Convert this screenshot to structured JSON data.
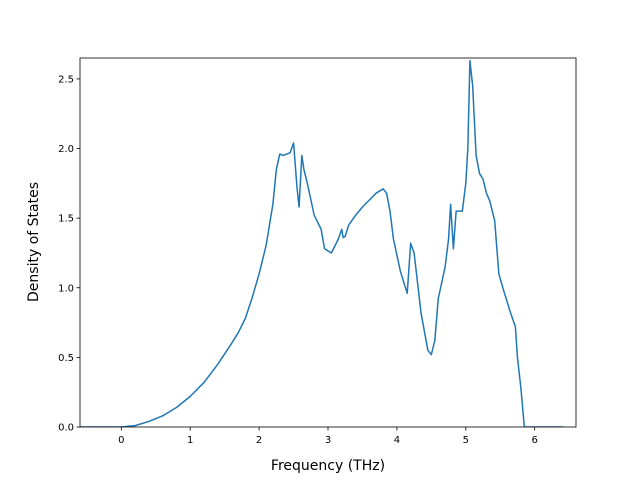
{
  "chart_data": {
    "type": "line",
    "title": "",
    "xlabel": "Frequency (THz)",
    "ylabel": "Density of States",
    "xlim": [
      -0.6,
      6.6
    ],
    "ylim": [
      0,
      2.65
    ],
    "xticks": [
      0,
      1,
      2,
      3,
      4,
      5,
      6
    ],
    "yticks": [
      0.0,
      0.5,
      1.0,
      1.5,
      2.0,
      2.5
    ],
    "xtick_labels": [
      "0",
      "1",
      "2",
      "3",
      "4",
      "5",
      "6"
    ],
    "ytick_labels": [
      "0.0",
      "0.5",
      "1.0",
      "1.5",
      "2.0",
      "2.5"
    ],
    "grid": false,
    "legend": "none",
    "line_color": "#1f77b4",
    "series": [
      {
        "x": [
          -0.6,
          -0.3,
          0.0,
          0.2,
          0.4,
          0.6,
          0.8,
          1.0,
          1.2,
          1.4,
          1.6,
          1.7,
          1.8,
          1.9,
          2.0,
          2.1,
          2.2,
          2.25,
          2.3,
          2.35,
          2.45,
          2.5,
          2.55,
          2.58,
          2.62,
          2.65,
          2.7,
          2.8,
          2.9,
          2.95,
          3.05,
          3.15,
          3.2,
          3.22,
          3.25,
          3.3,
          3.4,
          3.5,
          3.6,
          3.7,
          3.8,
          3.85,
          3.9,
          3.95,
          4.05,
          4.15,
          4.2,
          4.25,
          4.35,
          4.45,
          4.5,
          4.55,
          4.6,
          4.7,
          4.75,
          4.78,
          4.82,
          4.86,
          4.95,
          5.0,
          5.03,
          5.06,
          5.1,
          5.15,
          5.2,
          5.25,
          5.3,
          5.35,
          5.42,
          5.48,
          5.55,
          5.65,
          5.72,
          5.75,
          5.8,
          5.85,
          5.87,
          6.0,
          6.42
        ],
        "y": [
          0.0,
          0.0,
          0.0,
          0.01,
          0.04,
          0.08,
          0.14,
          0.22,
          0.32,
          0.45,
          0.6,
          0.68,
          0.78,
          0.93,
          1.1,
          1.3,
          1.6,
          1.85,
          1.96,
          1.95,
          1.97,
          2.04,
          1.72,
          1.58,
          1.95,
          1.85,
          1.75,
          1.52,
          1.42,
          1.28,
          1.25,
          1.35,
          1.42,
          1.36,
          1.37,
          1.45,
          1.52,
          1.58,
          1.63,
          1.68,
          1.71,
          1.68,
          1.55,
          1.35,
          1.12,
          0.96,
          1.32,
          1.25,
          0.82,
          0.55,
          0.52,
          0.62,
          0.92,
          1.15,
          1.35,
          1.6,
          1.28,
          1.55,
          1.55,
          1.75,
          2.0,
          2.63,
          2.45,
          1.95,
          1.82,
          1.78,
          1.68,
          1.62,
          1.48,
          1.1,
          0.98,
          0.82,
          0.72,
          0.5,
          0.28,
          0.0,
          0.0,
          0.0,
          0.0
        ]
      }
    ]
  }
}
